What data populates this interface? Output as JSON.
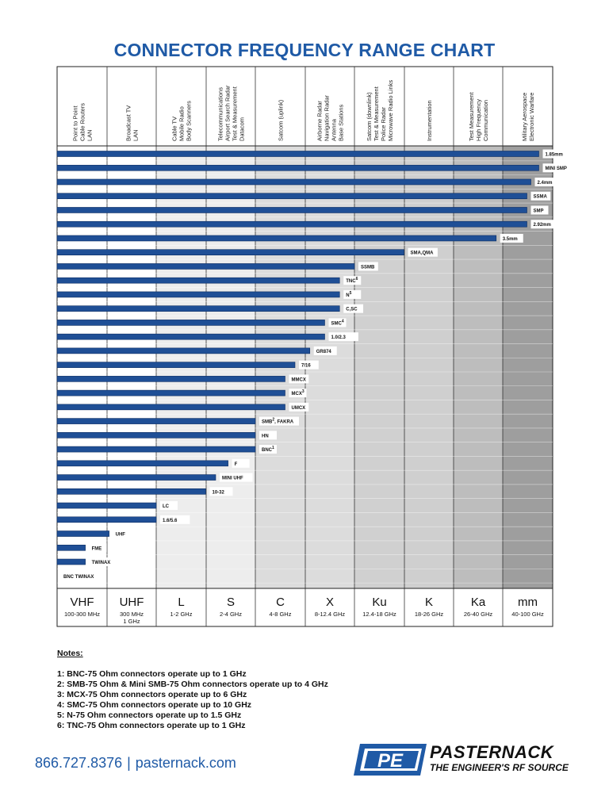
{
  "page": {
    "title": "CONNECTOR FREQUENCY RANGE CHART"
  },
  "chart_data": {
    "type": "bar",
    "orientation": "horizontal",
    "title": "CONNECTOR FREQUENCY RANGE CHART",
    "x_bands": [
      {
        "band": "VHF",
        "range": "100-300 MHz",
        "application": [
          "Point to Point",
          "Cable Routers",
          "LAN"
        ]
      },
      {
        "band": "UHF",
        "range": "300 MHz\n1 GHz",
        "application": [
          "Broadcast TV",
          "LAN"
        ]
      },
      {
        "band": "L",
        "range": "1-2 GHz",
        "application": [
          "Cable TV",
          "Mobile Radio",
          "Body Scanners"
        ]
      },
      {
        "band": "S",
        "range": "2-4 GHz",
        "application": [
          "Telecommunications",
          "Airport Search Radar",
          "Test & Measurement",
          "Datacom"
        ]
      },
      {
        "band": "C",
        "range": "4-8 GHz",
        "application": [
          "Satcom (uplink)"
        ]
      },
      {
        "band": "X",
        "range": "8-12.4 GHz",
        "application": [
          "Airborne Radar",
          "Navigation Radar",
          "Antenna",
          "Base Stations"
        ]
      },
      {
        "band": "Ku",
        "range": "12.4-18 GHz",
        "application": [
          "Satcom (downlink)",
          "Test & Measurement",
          "Police Radar",
          "Microwave Radio Links"
        ]
      },
      {
        "band": "K",
        "range": "18-26 GHz",
        "application": [
          "Instrumentation"
        ]
      },
      {
        "band": "Ka",
        "range": "26-40 GHz",
        "application": [
          "Test Measurement",
          "High Frequency",
          "Communication"
        ]
      },
      {
        "band": "mm",
        "range": "40-100 GHz",
        "application": [
          "Military Aerospace",
          "Electronic Warfare"
        ]
      }
    ],
    "series": [
      {
        "connector": "1.85mm",
        "sup": "",
        "max_band_position": 9.72
      },
      {
        "connector": "MINI SMP",
        "sup": "",
        "max_band_position": 9.72
      },
      {
        "connector": "2.4mm",
        "sup": "",
        "max_band_position": 9.56
      },
      {
        "connector": "SSMA",
        "sup": "",
        "max_band_position": 9.48
      },
      {
        "connector": "SMP",
        "sup": "",
        "max_band_position": 9.48
      },
      {
        "connector": "2.92mm",
        "sup": "",
        "max_band_position": 9.48
      },
      {
        "connector": "3.5mm",
        "sup": "",
        "max_band_position": 8.86
      },
      {
        "connector": "SMA,QMA",
        "sup": "",
        "max_band_position": 7.0
      },
      {
        "connector": "SSMB",
        "sup": "",
        "max_band_position": 6.0
      },
      {
        "connector": "TNC",
        "sup": "6",
        "max_band_position": 5.7
      },
      {
        "connector": "N",
        "sup": "5",
        "max_band_position": 5.7
      },
      {
        "connector": "C,SC",
        "sup": "",
        "max_band_position": 5.7
      },
      {
        "connector": "SMC",
        "sup": "4",
        "max_band_position": 5.4
      },
      {
        "connector": "1.0/2.3",
        "sup": "",
        "max_band_position": 5.4
      },
      {
        "connector": "GR874",
        "sup": "",
        "max_band_position": 5.1
      },
      {
        "connector": "7/16",
        "sup": "",
        "max_band_position": 4.8
      },
      {
        "connector": "MMCX",
        "sup": "",
        "max_band_position": 4.6
      },
      {
        "connector": "MCX",
        "sup": "3",
        "max_band_position": 4.6
      },
      {
        "connector": "UMCX",
        "sup": "",
        "max_band_position": 4.6
      },
      {
        "connector": "SMB",
        "sup": "2",
        "suffix": ", FAKRA",
        "max_band_position": 4.0
      },
      {
        "connector": "HN",
        "sup": "",
        "max_band_position": 4.0
      },
      {
        "connector": "BNC",
        "sup": "1",
        "max_band_position": 4.0
      },
      {
        "connector": "F",
        "sup": "",
        "max_band_position": 3.45
      },
      {
        "connector": "MINI UHF",
        "sup": "",
        "max_band_position": 3.2
      },
      {
        "connector": "10-32",
        "sup": "",
        "max_band_position": 3.0
      },
      {
        "connector": "LC",
        "sup": "",
        "max_band_position": 2.0
      },
      {
        "connector": "1.6/5.6",
        "sup": "",
        "max_band_position": 2.0
      },
      {
        "connector": "UHF",
        "sup": "",
        "max_band_position": 1.05
      },
      {
        "connector": "FME",
        "sup": "",
        "max_band_position": 0.57
      },
      {
        "connector": "TWINAX",
        "sup": "",
        "max_band_position": 0.57
      },
      {
        "connector": "BNC TWINAX",
        "sup": "",
        "max_band_position": 0.0
      }
    ],
    "colors": {
      "bar": "#1f4f96",
      "bar_edge": "#0d2e63",
      "title": "#1f5aa6"
    }
  },
  "notes": {
    "heading": "Notes:",
    "items": [
      "1:  BNC-75 Ohm connectors operate up to 1 GHz",
      "2:  SMB-75 Ohm & Mini SMB-75 Ohm connectors operate up to 4 GHz",
      "3:  MCX-75 Ohm connectors operate up to 6 GHz",
      "4:  SMC-75 Ohm connectors operate up to 10 GHz",
      "5:  N-75 Ohm connectors operate up to 1.5 GHz",
      "6:  TNC-75 Ohm connectors operate up to 1 GHz"
    ]
  },
  "footer": {
    "phone": "866.727.8376",
    "separator": "|",
    "website": "pasternack.com",
    "brand": "PASTERNACK",
    "tagline": "THE ENGINEER'S RF SOURCE",
    "logo_icon": "pe-logo-icon"
  }
}
